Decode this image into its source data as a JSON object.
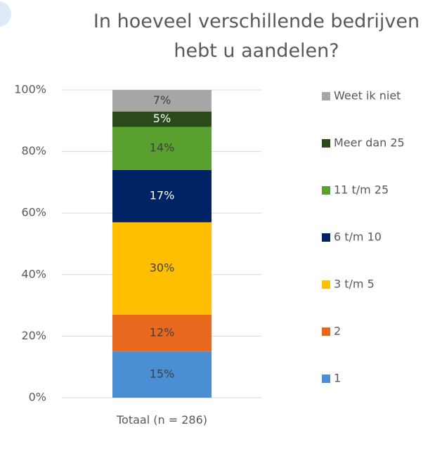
{
  "chart_data": {
    "type": "stacked_bar",
    "title": "In hoeveel verschillende bedrijven hebt u aandelen?",
    "categories": [
      "Totaal (n = 286)"
    ],
    "series": [
      {
        "name": "1",
        "color": "#4a8ed4",
        "label_color": "#404040",
        "values": [
          15
        ],
        "value_labels": [
          "15%"
        ]
      },
      {
        "name": "2",
        "color": "#e8691e",
        "label_color": "#404040",
        "values": [
          12
        ],
        "value_labels": [
          "12%"
        ]
      },
      {
        "name": "3 t/m 5",
        "color": "#ffbf00",
        "label_color": "#404040",
        "values": [
          30
        ],
        "value_labels": [
          "30%"
        ]
      },
      {
        "name": "6 t/m 10",
        "color": "#002366",
        "label_color": "#ffffff",
        "values": [
          17
        ],
        "value_labels": [
          "17%"
        ]
      },
      {
        "name": "11 t/m 25",
        "color": "#5aa02f",
        "label_color": "#404040",
        "values": [
          14
        ],
        "value_labels": [
          "14%"
        ]
      },
      {
        "name": "Meer dan 25",
        "color": "#2b4a1a",
        "label_color": "#ffffff",
        "values": [
          5
        ],
        "value_labels": [
          "5%"
        ]
      },
      {
        "name": "Weet ik niet",
        "color": "#a6a6a6",
        "label_color": "#404040",
        "values": [
          7
        ],
        "value_labels": [
          "7%"
        ]
      }
    ],
    "ylim": [
      0,
      100
    ],
    "yticks": [
      {
        "value": 0,
        "label": "0%"
      },
      {
        "value": 20,
        "label": "20%"
      },
      {
        "value": 40,
        "label": "40%"
      },
      {
        "value": 60,
        "label": "60%"
      },
      {
        "value": 80,
        "label": "80%"
      },
      {
        "value": 100,
        "label": "100%"
      }
    ],
    "grid": true,
    "legend": "right"
  }
}
